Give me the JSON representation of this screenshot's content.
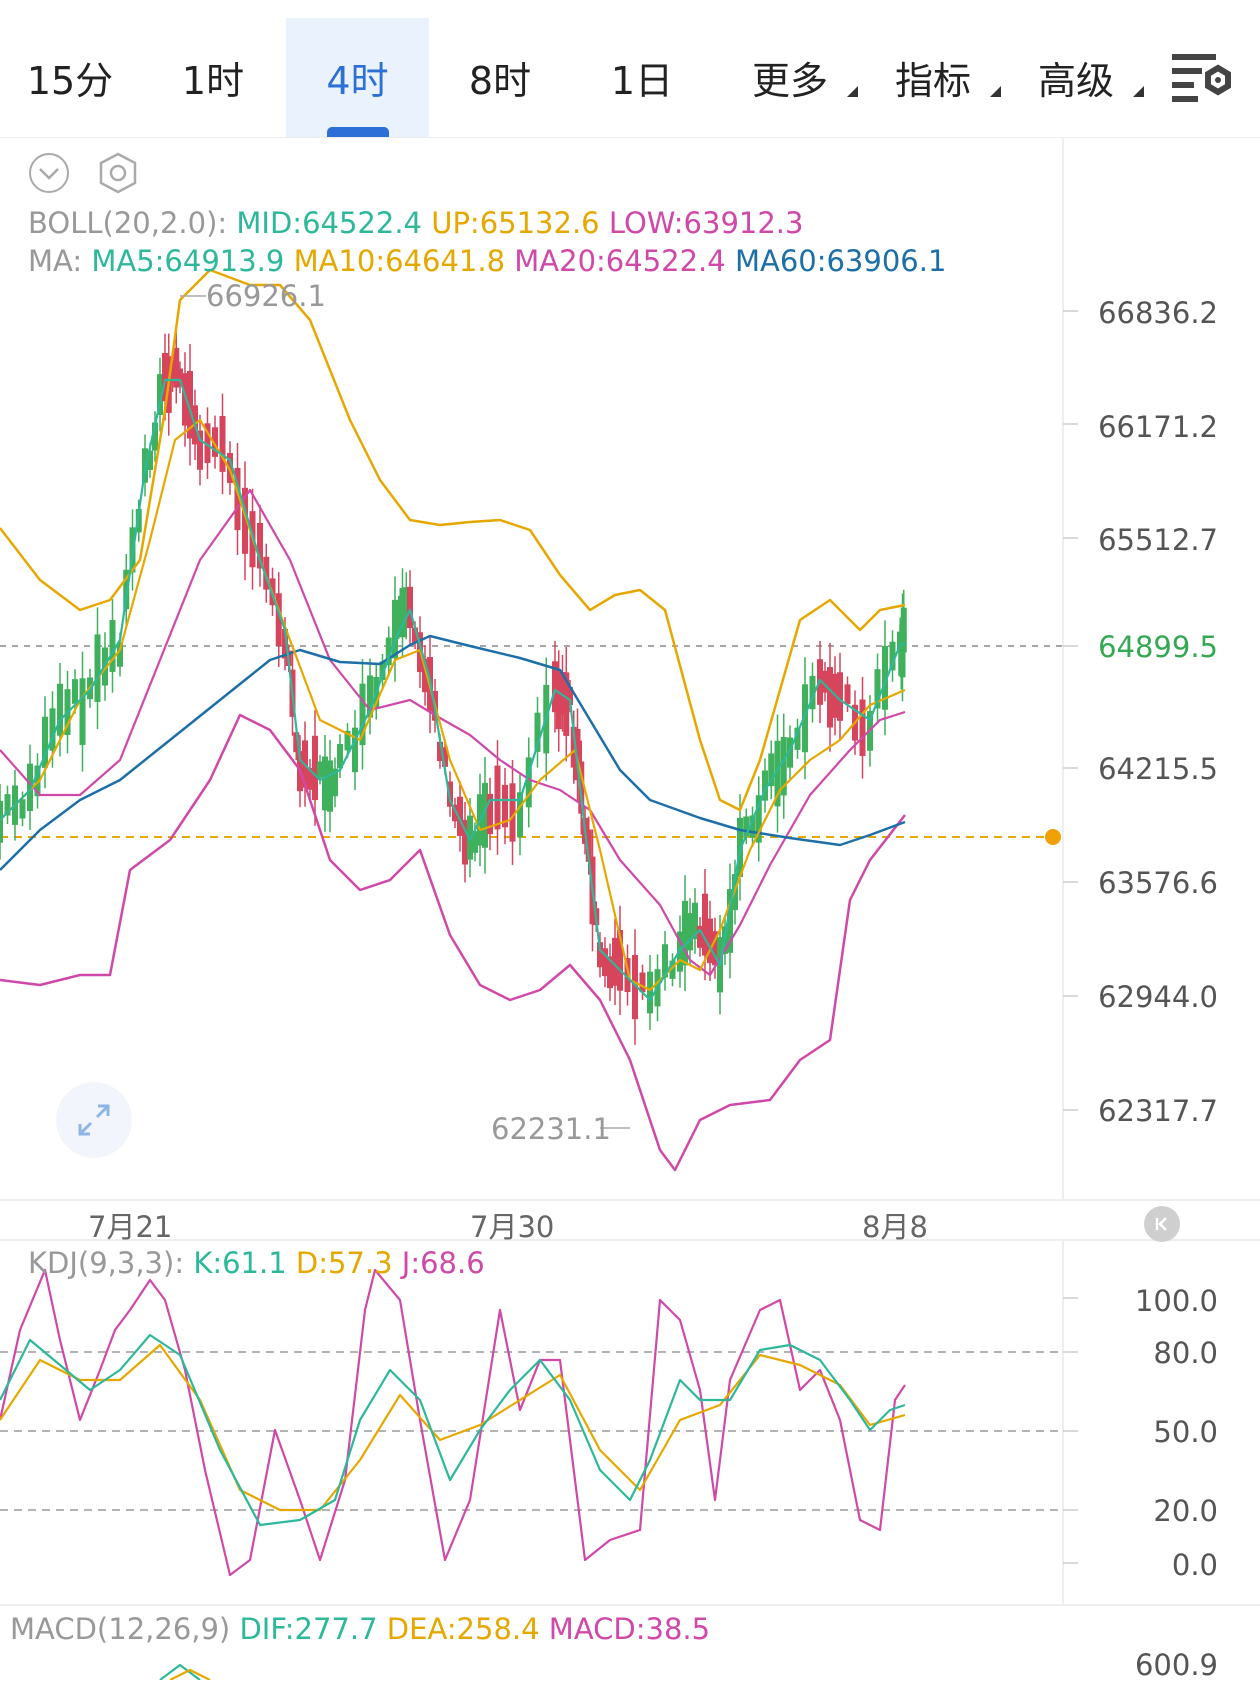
{
  "tabs": [
    {
      "label": "15分",
      "active": false,
      "dropdown": false
    },
    {
      "label": "1时",
      "active": false,
      "dropdown": false
    },
    {
      "label": "4时",
      "active": true,
      "dropdown": false
    },
    {
      "label": "8时",
      "active": false,
      "dropdown": false
    },
    {
      "label": "1日",
      "active": false,
      "dropdown": false
    },
    {
      "label": "更多",
      "active": false,
      "dropdown": true
    },
    {
      "label": "指标",
      "active": false,
      "dropdown": true
    },
    {
      "label": "高级",
      "active": false,
      "dropdown": true
    }
  ],
  "indicators": {
    "boll_prefix": "BOLL(20,2.0):",
    "boll_mid": "MID:64522.4",
    "boll_up": "UP:65132.6",
    "boll_low": "LOW:63912.3",
    "ma_prefix": "MA:",
    "ma5": "MA5:64913.9",
    "ma10": "MA10:64641.8",
    "ma20": "MA20:64522.4",
    "ma60": "MA60:63906.1"
  },
  "price_axis": [
    "66836.2",
    "66171.2",
    "65512.7",
    "64899.5",
    "64215.5",
    "63576.6",
    "62944.0",
    "62317.7"
  ],
  "current_price": "64899.5",
  "high_marker": "66926.1",
  "low_marker": "62231.1",
  "date_axis": [
    "7月21",
    "7月30",
    "8月8"
  ],
  "kdj": {
    "prefix": "KDJ(9,3,3):",
    "k": "K:61.1",
    "d": "D:57.3",
    "j": "J:68.6",
    "axis": [
      "100.0",
      "80.0",
      "50.0",
      "20.0",
      "0.0"
    ]
  },
  "macd": {
    "prefix": "MACD(12,26,9)",
    "dif": "DIF:277.7",
    "dea": "DEA:258.4",
    "macd": "MACD:38.5",
    "axis_top": "600.9"
  },
  "colors": {
    "up": "#3fb15c",
    "down": "#d6455c",
    "mid": "#2db89a",
    "upper": "#e6a800",
    "lower": "#d048a8",
    "ma60": "#1d6fa8",
    "active_tab": "#2c6fd6",
    "price_green": "#34a853"
  }
}
